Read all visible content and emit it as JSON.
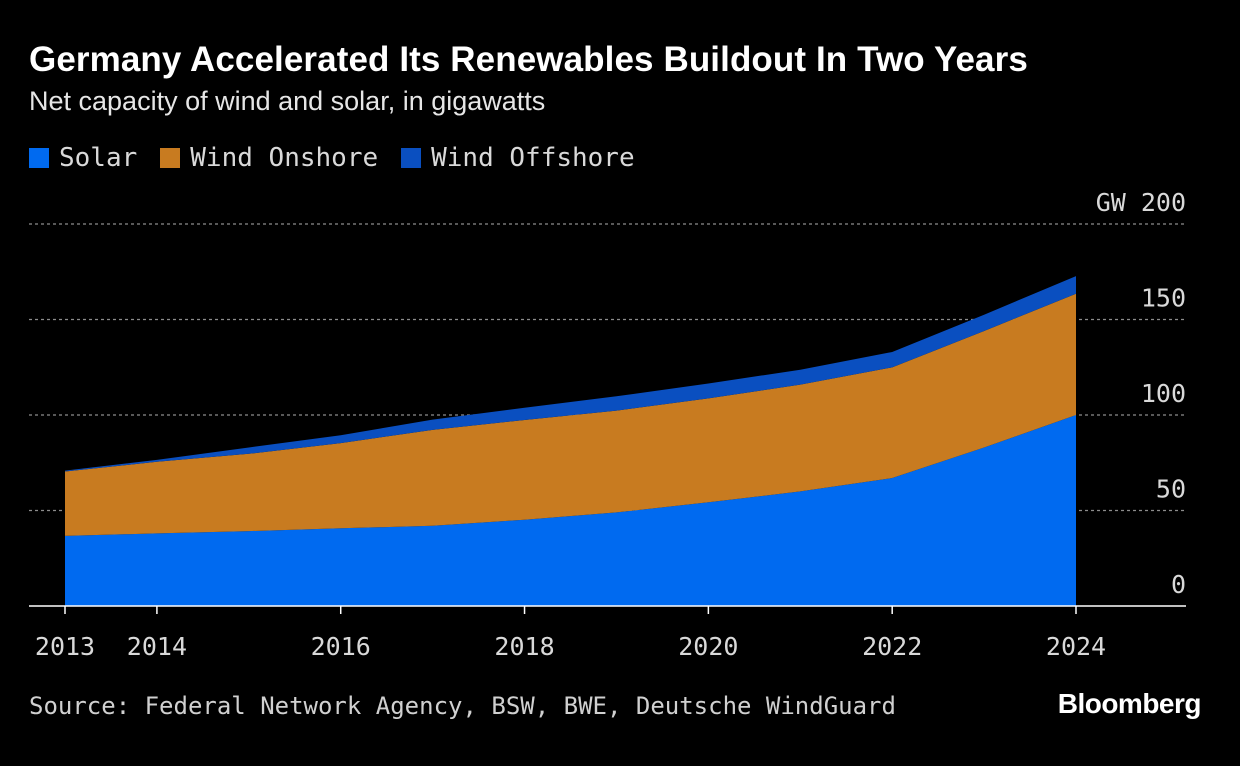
{
  "colors": {
    "solar": "#006af0",
    "wind_onshore": "#c87b20",
    "wind_offshore": "#0a4fc0",
    "gridline": "#8c8c8c",
    "axis": "#ffffff",
    "text": "#d9d9d9",
    "background": "#000000"
  },
  "chart_data": {
    "type": "area",
    "stacked": true,
    "title": "Germany Accelerated Its Renewables Buildout In Two Years",
    "subtitle": "Net capacity of wind and solar, in gigawatts",
    "x": [
      2013,
      2014,
      2015,
      2016,
      2017,
      2018,
      2019,
      2020,
      2021,
      2022,
      2023,
      2024
    ],
    "series": [
      {
        "name": "Solar",
        "values": [
          36.7,
          38.0,
          39.2,
          40.7,
          42.0,
          45.2,
          49.0,
          54.3,
          60.0,
          67.0,
          83.0,
          100.0
        ]
      },
      {
        "name": "Wind Onshore",
        "values": [
          33.7,
          37.5,
          40.5,
          44.6,
          50.2,
          52.2,
          53.3,
          54.4,
          55.9,
          57.9,
          61.0,
          63.5
        ]
      },
      {
        "name": "Wind Offshore",
        "values": [
          0.5,
          1.0,
          3.3,
          4.1,
          5.4,
          6.4,
          7.5,
          7.8,
          7.8,
          8.1,
          8.5,
          9.2
        ]
      }
    ],
    "xlabel": "",
    "ylabel": "GW",
    "xlim": [
      2013,
      2024
    ],
    "ylim": [
      0,
      200
    ],
    "y_ticks": [
      0,
      50,
      100,
      150,
      200
    ],
    "y_tick_labels": [
      "0",
      "50",
      "100",
      "150",
      "GW 200"
    ],
    "x_ticks": [
      2013,
      2014,
      2016,
      2018,
      2020,
      2022,
      2024
    ],
    "x_tick_labels": [
      "2013",
      "2014",
      "2016",
      "2018",
      "2020",
      "2022",
      "2024"
    ],
    "grid": true,
    "legend": "top-left"
  },
  "source": "Source: Federal Network Agency, BSW, BWE, Deutsche WindGuard",
  "brand": "Bloomberg"
}
